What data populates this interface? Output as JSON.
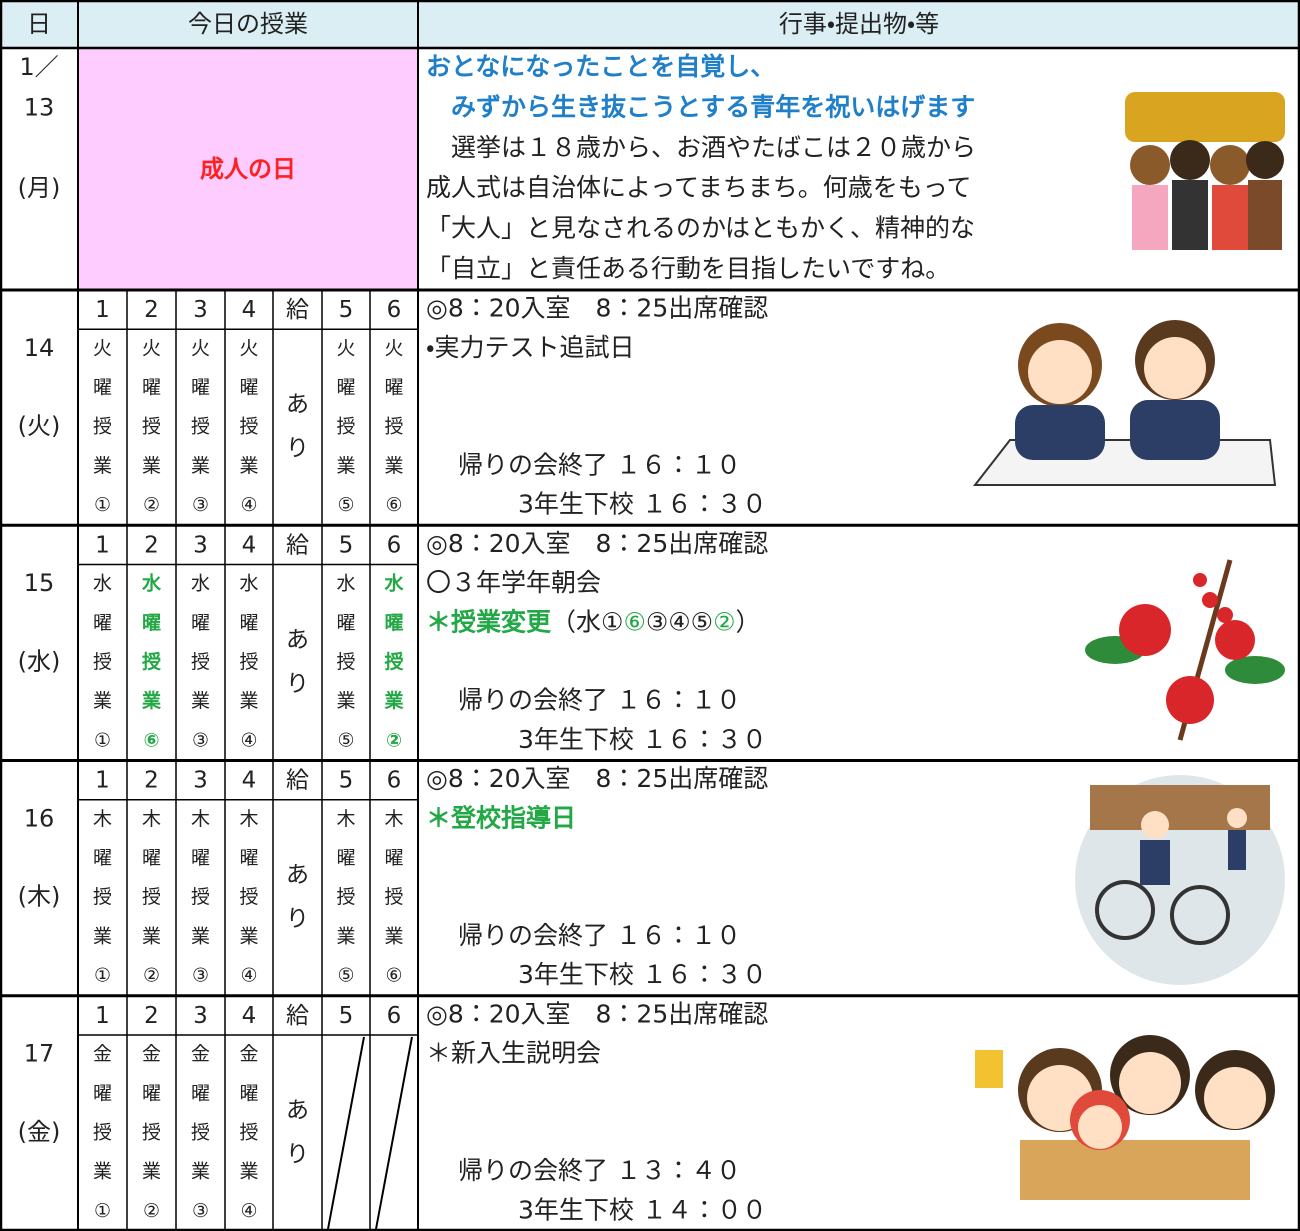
{
  "header": {
    "date": "日",
    "classes": "今日の授業",
    "events": "行事・提出物・等"
  },
  "holiday": {
    "date": [
      "1／",
      "13",
      "(月)"
    ],
    "name": "成人の日",
    "events": [
      [
        {
          "text": "おとなになったことを自覚し、",
          "color": "#1f7fc9",
          "bold": true
        }
      ],
      [
        {
          "text": "　みずから生き抜こうとする青年を祝いはげます",
          "color": "#1f7fc9",
          "bold": true
        }
      ],
      [
        {
          "text": "　選挙は１８歳から、お酒やたばこは２０歳から"
        }
      ],
      [
        {
          "text": "成人式は自治体によってまちまち。何歳をもって"
        }
      ],
      [
        {
          "text": "「大人」と見なされるのかはともかく、精神的な"
        }
      ],
      [
        {
          "text": "「自立」と責任ある行動を目指したいですね。"
        }
      ]
    ]
  },
  "days": [
    {
      "date": [
        "14",
        "(火)"
      ],
      "periods": [
        "1",
        "2",
        "3",
        "4",
        "給",
        "5",
        "6"
      ],
      "columns": [
        {
          "cells": [
            "火",
            "曜",
            "授",
            "業",
            "①"
          ]
        },
        {
          "cells": [
            "火",
            "曜",
            "授",
            "業",
            "②"
          ]
        },
        {
          "cells": [
            "火",
            "曜",
            "授",
            "業",
            "③"
          ]
        },
        {
          "cells": [
            "火",
            "曜",
            "授",
            "業",
            "④"
          ]
        },
        {
          "cells": [
            "あ",
            "り"
          ],
          "merged": true
        },
        {
          "cells": [
            "火",
            "曜",
            "授",
            "業",
            "⑤"
          ]
        },
        {
          "cells": [
            "火",
            "曜",
            "授",
            "業",
            "⑥"
          ]
        }
      ],
      "events": [
        [
          {
            "text": "◎8：20入室　8：25出席確認"
          }
        ],
        [
          {
            "text": "・実力テスト追試日"
          }
        ],
        null,
        null,
        [
          {
            "text": "帰りの会終了 １６：１０"
          }
        ],
        [
          {
            "text": "3年生下校 １６：３０"
          }
        ]
      ]
    },
    {
      "date": [
        "15",
        "(水)"
      ],
      "periods": [
        "1",
        "2",
        "3",
        "4",
        "給",
        "5",
        "6"
      ],
      "columns": [
        {
          "cells": [
            "水",
            "曜",
            "授",
            "業",
            "①"
          ]
        },
        {
          "cells": [
            "水",
            "曜",
            "授",
            "業",
            "⑥"
          ],
          "color": "#22a845"
        },
        {
          "cells": [
            "水",
            "曜",
            "授",
            "業",
            "③"
          ]
        },
        {
          "cells": [
            "水",
            "曜",
            "授",
            "業",
            "④"
          ]
        },
        {
          "cells": [
            "あ",
            "り"
          ],
          "merged": true
        },
        {
          "cells": [
            "水",
            "曜",
            "授",
            "業",
            "⑤"
          ]
        },
        {
          "cells": [
            "水",
            "曜",
            "授",
            "業",
            "②"
          ],
          "color": "#22a845"
        }
      ],
      "events": [
        [
          {
            "text": "◎8：20入室　8：25出席確認"
          }
        ],
        [
          {
            "text": "〇３年学年朝会"
          }
        ],
        [
          {
            "text": "＊授業変更",
            "color": "#22a845",
            "bold": true
          },
          {
            "text": "（水①"
          },
          {
            "text": "⑥",
            "color": "#22a845"
          },
          {
            "text": "③④⑤"
          },
          {
            "text": "②",
            "color": "#22a845"
          },
          {
            "text": "）"
          }
        ],
        null,
        [
          {
            "text": "帰りの会終了 １６：１０"
          }
        ],
        [
          {
            "text": "3年生下校 １６：３０"
          }
        ]
      ]
    },
    {
      "date": [
        "16",
        "(木)"
      ],
      "periods": [
        "1",
        "2",
        "3",
        "4",
        "給",
        "5",
        "6"
      ],
      "columns": [
        {
          "cells": [
            "木",
            "曜",
            "授",
            "業",
            "①"
          ]
        },
        {
          "cells": [
            "木",
            "曜",
            "授",
            "業",
            "②"
          ]
        },
        {
          "cells": [
            "木",
            "曜",
            "授",
            "業",
            "③"
          ]
        },
        {
          "cells": [
            "木",
            "曜",
            "授",
            "業",
            "④"
          ]
        },
        {
          "cells": [
            "あ",
            "り"
          ],
          "merged": true
        },
        {
          "cells": [
            "木",
            "曜",
            "授",
            "業",
            "⑤"
          ]
        },
        {
          "cells": [
            "木",
            "曜",
            "授",
            "業",
            "⑥"
          ]
        }
      ],
      "events": [
        [
          {
            "text": "◎8：20入室　8：25出席確認"
          }
        ],
        [
          {
            "text": "＊登校指導日",
            "color": "#22a845",
            "bold": true
          }
        ],
        null,
        null,
        [
          {
            "text": "帰りの会終了 １６：１０"
          }
        ],
        [
          {
            "text": "3年生下校 １６：３０"
          }
        ]
      ]
    },
    {
      "date": [
        "17",
        "(金)"
      ],
      "periods": [
        "1",
        "2",
        "3",
        "4",
        "給",
        "5",
        "6"
      ],
      "columns": [
        {
          "cells": [
            "金",
            "曜",
            "授",
            "業",
            "①"
          ]
        },
        {
          "cells": [
            "金",
            "曜",
            "授",
            "業",
            "②"
          ]
        },
        {
          "cells": [
            "金",
            "曜",
            "授",
            "業",
            "③"
          ]
        },
        {
          "cells": [
            "金",
            "曜",
            "授",
            "業",
            "④"
          ]
        },
        {
          "cells": [
            "あ",
            "り"
          ],
          "merged": true
        },
        {
          "cells": [],
          "crossed": true
        },
        {
          "cells": [],
          "crossed": true
        }
      ],
      "events": [
        [
          {
            "text": "◎8：20入室　8：25出席確認"
          }
        ],
        [
          {
            "text": "＊新入生説明会"
          }
        ],
        null,
        null,
        [
          {
            "text": "帰りの会終了 １３：４０"
          }
        ],
        [
          {
            "text": "3年生下校 １４：００"
          }
        ]
      ]
    }
  ]
}
